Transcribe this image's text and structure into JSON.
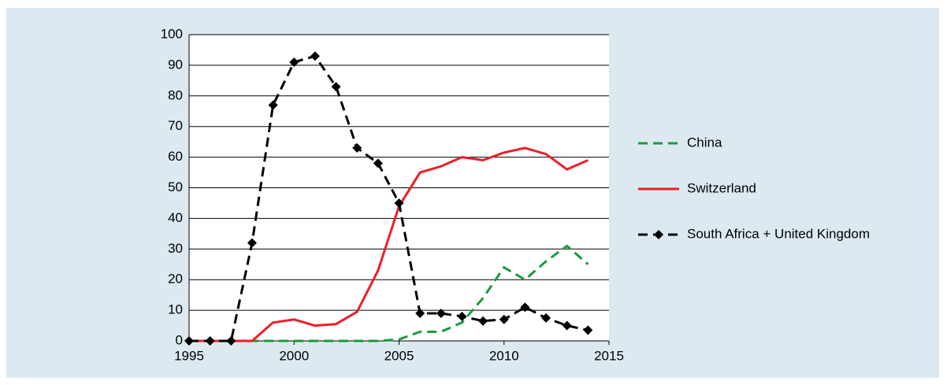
{
  "chart_data": {
    "type": "line",
    "x": [
      1995,
      1996,
      1997,
      1998,
      1999,
      2000,
      2001,
      2002,
      2003,
      2004,
      2005,
      2006,
      2007,
      2008,
      2009,
      2010,
      2011,
      2012,
      2013,
      2014
    ],
    "series": [
      {
        "name": "China",
        "color": "#1a9a3c",
        "dash": "dashed",
        "marker": "none",
        "values": [
          0,
          0,
          0,
          0,
          0,
          0,
          0,
          0,
          0,
          0,
          0.5,
          3,
          3,
          6,
          14,
          24,
          20,
          26,
          31,
          25
        ]
      },
      {
        "name": "Switzerland",
        "color": "#e8202a",
        "dash": "solid",
        "marker": "none",
        "values": [
          0,
          0,
          0,
          0,
          6,
          7,
          5,
          5.5,
          9.5,
          23,
          44,
          55,
          57,
          60,
          59,
          61.5,
          63,
          61,
          56,
          59
        ]
      },
      {
        "name": "South Africa + United Kingdom",
        "color": "#000000",
        "dash": "dashed",
        "marker": "diamond",
        "values": [
          0,
          0,
          0,
          32,
          77,
          91,
          93,
          83,
          63,
          58,
          45,
          9,
          9,
          8,
          6.5,
          7,
          11,
          7.5,
          5,
          3.5
        ]
      }
    ],
    "xlim": [
      1995,
      2015
    ],
    "xticks": [
      1995,
      2000,
      2005,
      2010,
      2015
    ],
    "ylim": [
      0,
      100
    ],
    "yticks": [
      0,
      10,
      20,
      30,
      40,
      50,
      60,
      70,
      80,
      90,
      100
    ],
    "grid": true,
    "legend": "right"
  }
}
